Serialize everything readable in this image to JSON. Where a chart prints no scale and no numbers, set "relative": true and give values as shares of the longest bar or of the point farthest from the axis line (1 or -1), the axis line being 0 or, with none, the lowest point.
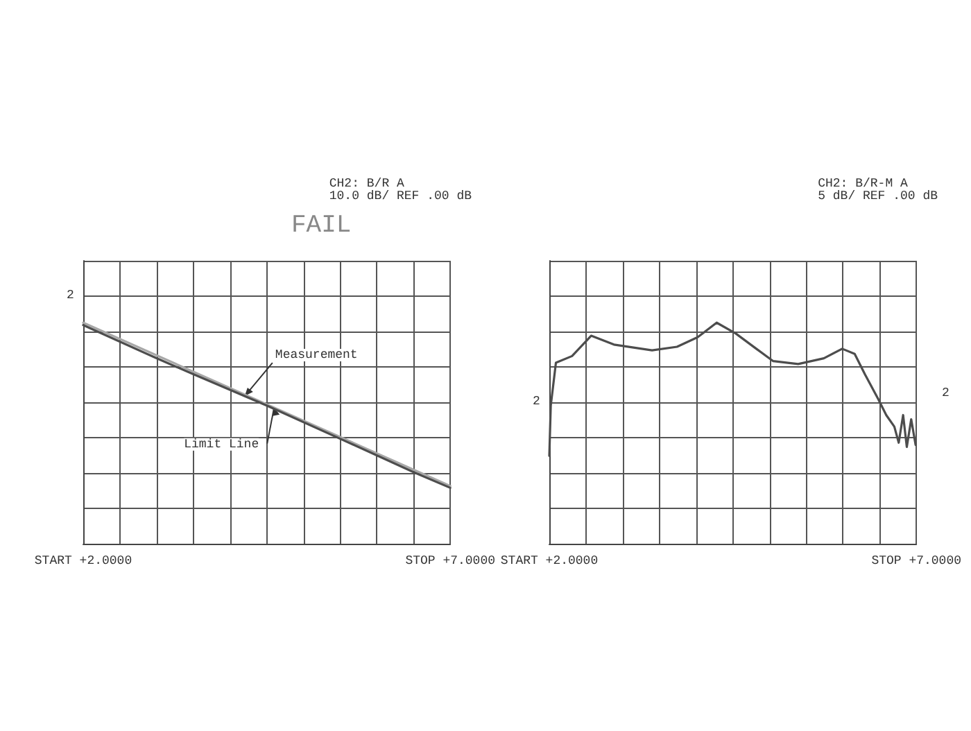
{
  "chart_data": [
    {
      "type": "line",
      "title": "FAIL",
      "subtitle": "CH2: B/R A\n10.0 dB/ REF .00 dB",
      "relative": true,
      "xlim": [
        2,
        7
      ],
      "xticks": [
        {
          "value": 2,
          "label": "START +2.0000"
        },
        {
          "value": 2.5,
          "label": null
        },
        {
          "value": 3,
          "label": null
        },
        {
          "value": 3.5,
          "label": null
        },
        {
          "value": 4,
          "label": null
        },
        {
          "value": 4.5,
          "label": null
        },
        {
          "value": 5,
          "label": null
        },
        {
          "value": 5.5,
          "label": null
        },
        {
          "value": 6,
          "label": null
        },
        {
          "value": 6.5,
          "label": null
        },
        {
          "value": 7,
          "label": "STOP +7.0000"
        }
      ],
      "grid": true,
      "marker": "none",
      "line_style": "solid",
      "series": [
        {
          "color": "#4d4d4d",
          "x": [
            2,
            3,
            3.5,
            4.5,
            5.5,
            6.5,
            7
          ],
          "values": [
            0.989,
            0.839,
            0.767,
            0.625,
            0.475,
            0.324,
            0.253
          ]
        },
        {
          "color": "#a8a8a8",
          "x": [
            2,
            7
          ],
          "values": [
            1,
            0.261
          ]
        }
      ],
      "annotations": [
        {
          "text": "Measurement",
          "x": 4.2,
          "y": 0.668
        },
        {
          "text": "Limit Line",
          "x": 4.6,
          "y": 0.616
        },
        "2"
      ]
    },
    {
      "type": "line",
      "subtitle": "CH2: B/R-M A\n5 dB/ REF .00 dB",
      "relative": true,
      "xlim": [
        2,
        7
      ],
      "xticks": [
        {
          "value": 2,
          "label": "START +2.0000"
        },
        {
          "value": 2.5,
          "label": null
        },
        {
          "value": 3,
          "label": null
        },
        {
          "value": 3.5,
          "label": null
        },
        {
          "value": 4,
          "label": null
        },
        {
          "value": 4.5,
          "label": null
        },
        {
          "value": 5,
          "label": null
        },
        {
          "value": 5.5,
          "label": null
        },
        {
          "value": 6,
          "label": null
        },
        {
          "value": 6.5,
          "label": null
        },
        {
          "value": 7,
          "label": "STOP +7.0000"
        }
      ],
      "grid": true,
      "marker": "none",
      "line_style": "solid",
      "series": [
        {
          "color": "#4d4d4d",
          "x": [
            2,
            2.02,
            2.09,
            2.31,
            2.57,
            2.88,
            3.4,
            3.74,
            4.02,
            4.28,
            4.54,
            4.82,
            5.05,
            5.39,
            5.74,
            5.99,
            6.16,
            6.3,
            6.48,
            6.59,
            6.7,
            6.76,
            6.82,
            6.87,
            6.93,
            6.99
          ],
          "values": [
            0.398,
            0.625,
            0.819,
            0.849,
            0.941,
            0.901,
            0.875,
            0.891,
            0.934,
            1,
            0.951,
            0.882,
            0.826,
            0.813,
            0.839,
            0.882,
            0.859,
            0.766,
            0.655,
            0.582,
            0.53,
            0.457,
            0.582,
            0.438,
            0.563,
            0.447
          ]
        }
      ],
      "annotations": [
        "2",
        "2"
      ]
    }
  ]
}
